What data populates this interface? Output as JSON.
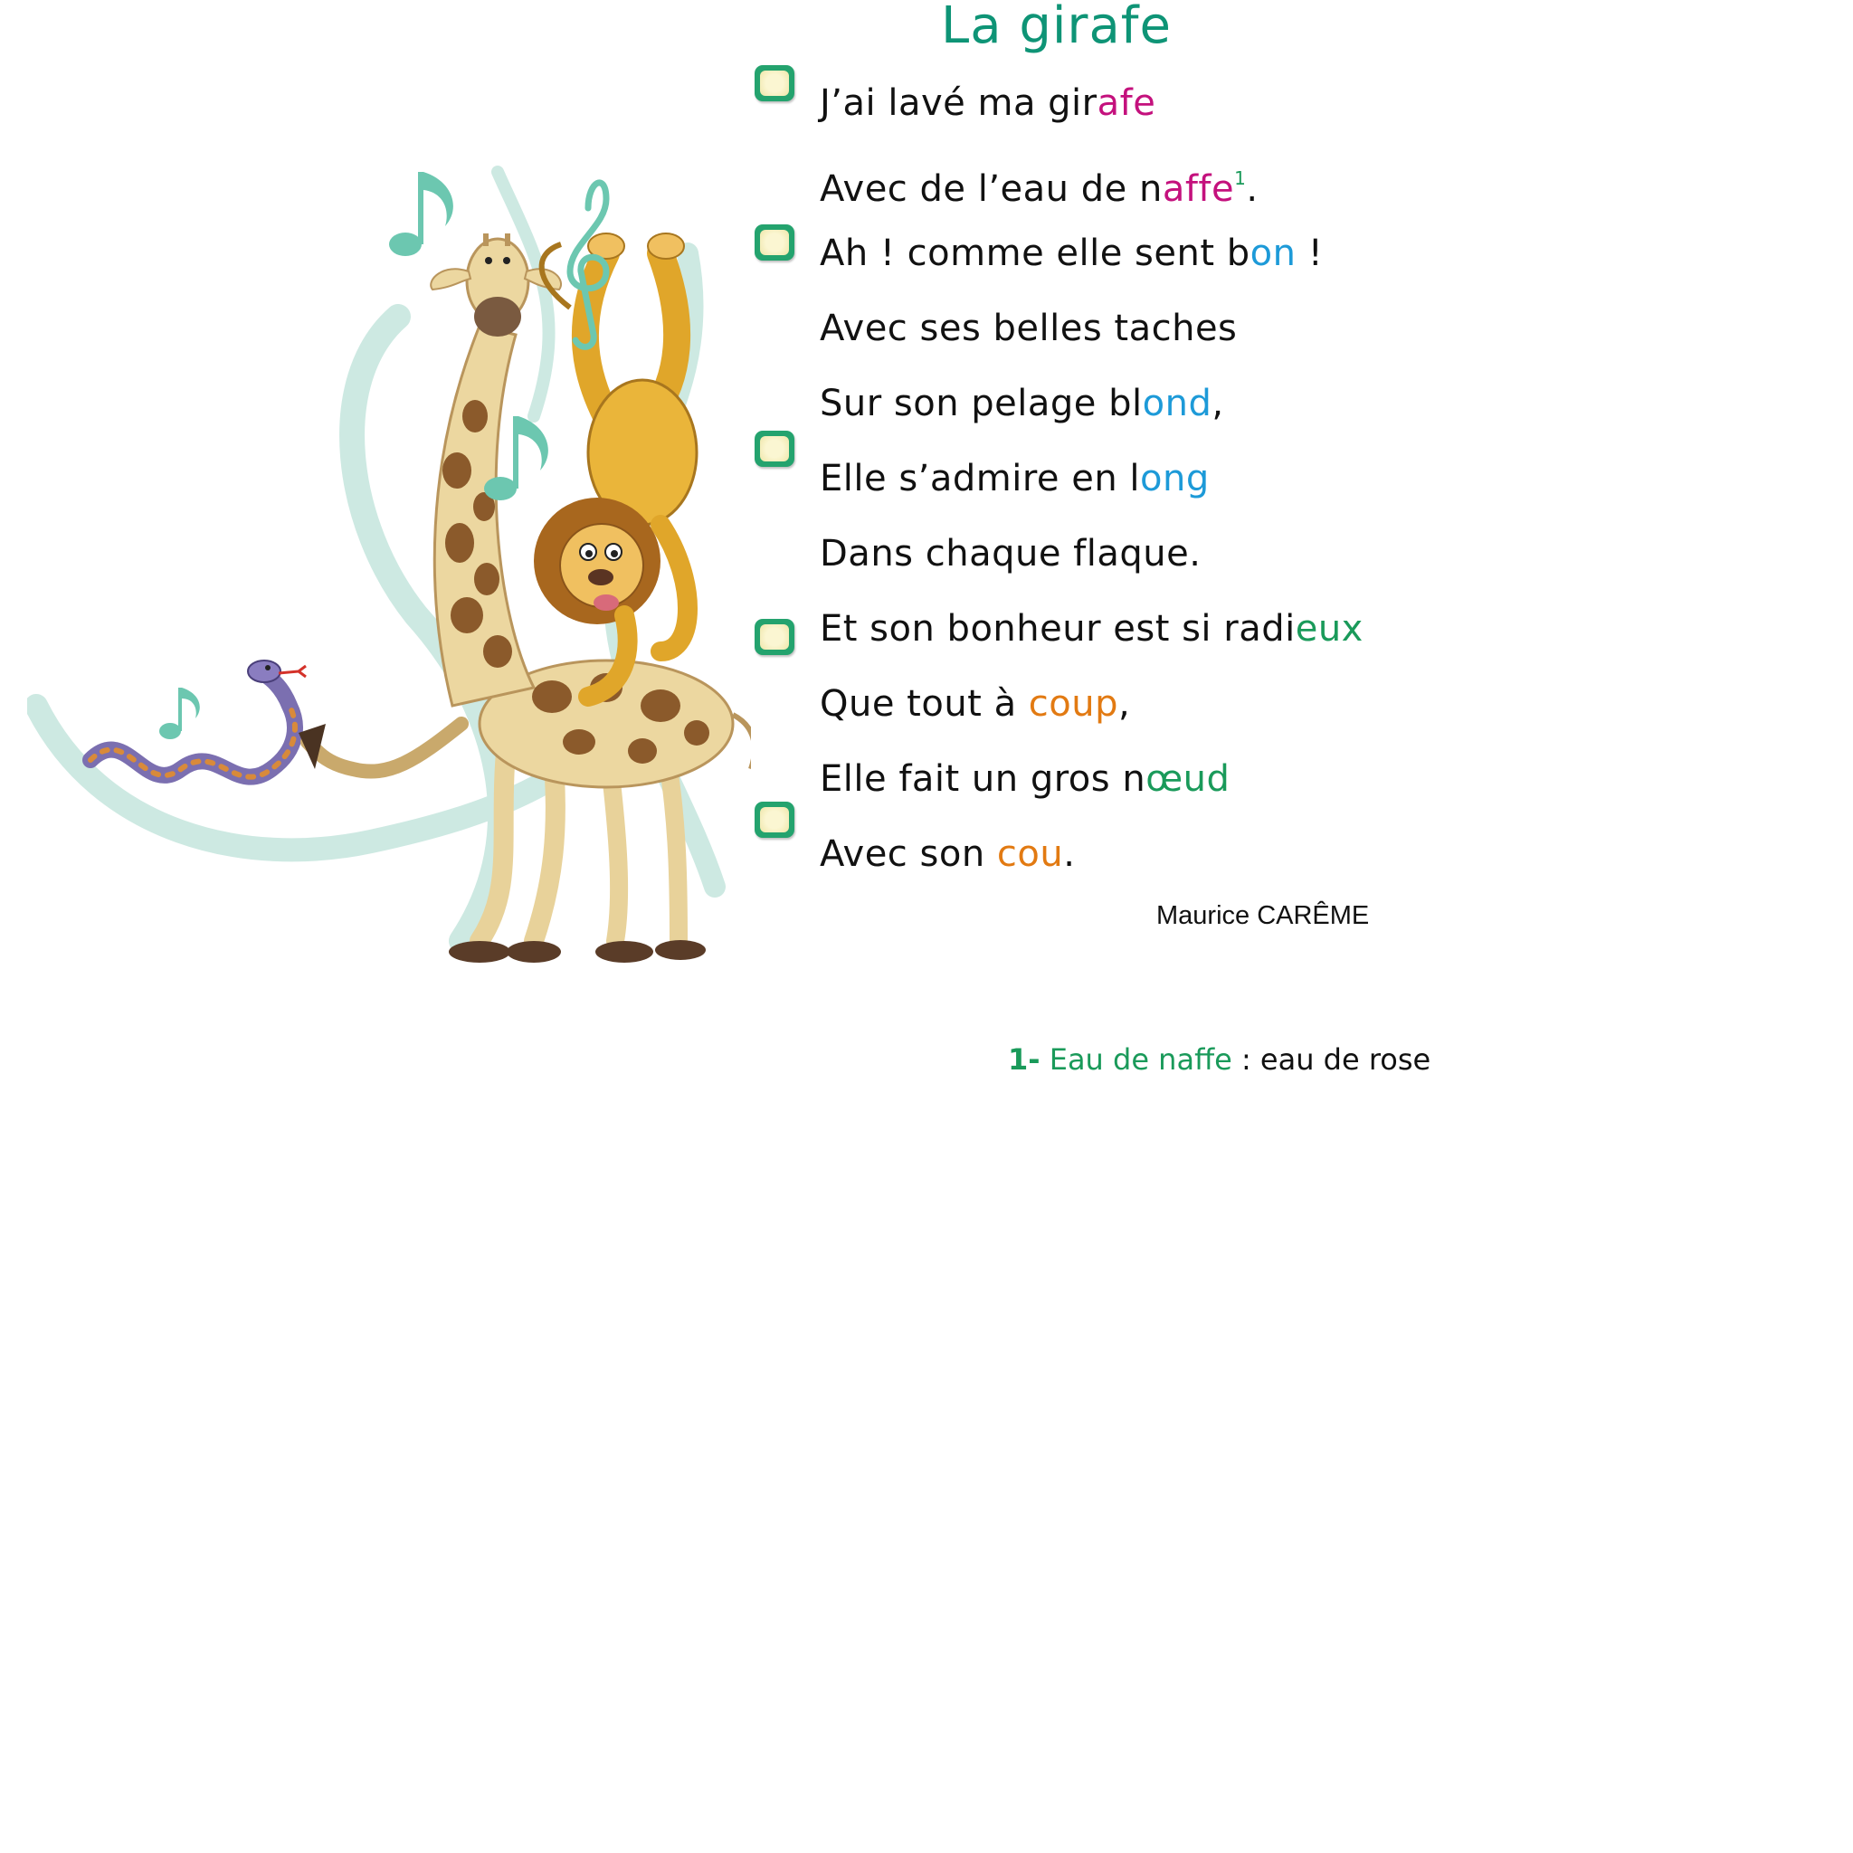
{
  "poem": {
    "title": "La girafe",
    "lines": [
      {
        "prefix": "J’ai lavé ma gir",
        "hl": "afe",
        "color": "#c4117d",
        "suffix": ""
      },
      {
        "prefix": "Avec de l’eau de n",
        "hl": "affe",
        "color": "#c4117d",
        "sup": "1",
        "suffix": "."
      },
      {
        "prefix": "Ah ! comme elle sent b",
        "hl": "on",
        "color": "#1d9ad8",
        "suffix": " !"
      },
      {
        "prefix": "Avec ses belles taches",
        "hl": "",
        "color": "",
        "suffix": ""
      },
      {
        "prefix": "Sur son pelage bl",
        "hl": "ond",
        "color": "#1d9ad8",
        "suffix": ","
      },
      {
        "prefix": "Elle s’admire en l",
        "hl": "ong",
        "color": "#1d9ad8",
        "suffix": ""
      },
      {
        "prefix": "Dans chaque flaque.",
        "hl": "",
        "color": "",
        "suffix": ""
      },
      {
        "prefix": "Et son bonheur est si radi",
        "hl": "eux",
        "color": "#1a9a5a",
        "suffix": ""
      },
      {
        "prefix": "Que tout à ",
        "hl": "coup",
        "color": "#e27a12",
        "suffix": ","
      },
      {
        "prefix": "Elle fait un gros n",
        "hl": "œud",
        "color": "#1a9a5a",
        "suffix": ""
      },
      {
        "prefix": "Avec son ",
        "hl": "cou",
        "color": "#e27a12",
        "suffix": "."
      }
    ],
    "author": "Maurice CARÊME"
  },
  "footnote": {
    "number": "1-",
    "term": "Eau de naffe",
    "definition": " : eau de rose"
  },
  "colors": {
    "title": "#0e9476",
    "rhyme_pink": "#c4117d",
    "rhyme_blue": "#1d9ad8",
    "rhyme_green": "#1a9a5a",
    "rhyme_orange": "#e27a12",
    "marker": "#24a36e"
  },
  "illustration": {
    "icons": [
      "giraffe-icon",
      "lion-icon",
      "snake-icon",
      "music-note-icon",
      "treble-clef-icon"
    ]
  }
}
